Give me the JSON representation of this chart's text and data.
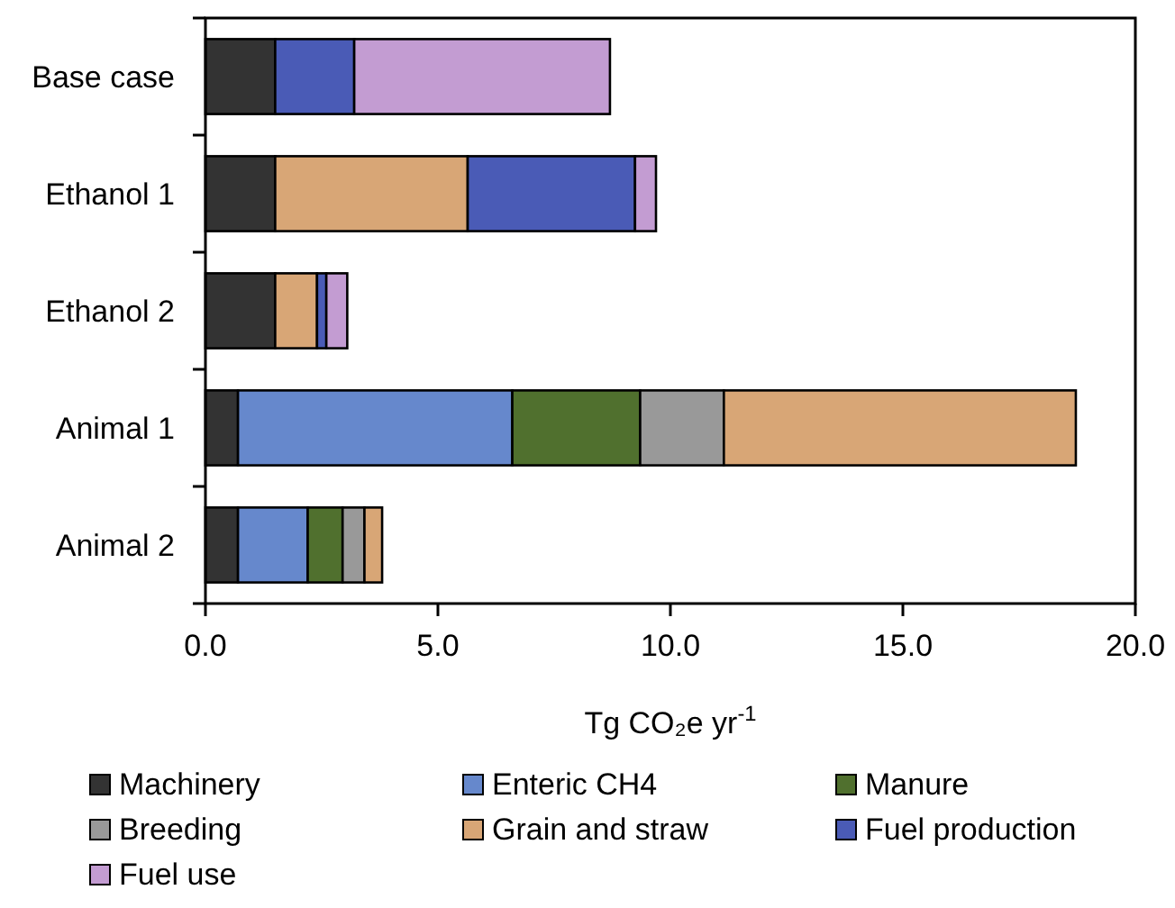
{
  "chart_data": {
    "type": "bar",
    "orientation": "horizontal",
    "stacked": true,
    "categories": [
      "Base case",
      "Ethanol 1",
      "Ethanol 2",
      "Animal 1",
      "Animal 2"
    ],
    "xlabel": "Tg CO₂e yr$^{-1}$",
    "xlim": [
      0,
      20
    ],
    "xticks": [
      {
        "value": 0,
        "label": "0.0"
      },
      {
        "value": 5,
        "label": "5.0"
      },
      {
        "value": 10,
        "label": "10.0"
      },
      {
        "value": 15,
        "label": "15.0"
      },
      {
        "value": 20,
        "label": "20.0"
      }
    ],
    "grid": false,
    "legend": "bottom",
    "series": [
      {
        "name": "Machinery",
        "color": "#333333",
        "values": [
          1.5,
          1.5,
          1.5,
          0.7,
          0.7
        ]
      },
      {
        "name": "Enteric CH4",
        "color": "#6688cc",
        "values": [
          0,
          0,
          0,
          5.9,
          1.5
        ]
      },
      {
        "name": "Manure",
        "color": "#50702e",
        "values": [
          0,
          0,
          0,
          2.75,
          0.75
        ]
      },
      {
        "name": "Breeding",
        "color": "#999999",
        "values": [
          0,
          0,
          0,
          1.8,
          0.47
        ]
      },
      {
        "name": "Grain and straw",
        "color": "#d8a676",
        "values": [
          0,
          4.14,
          0.9,
          7.57,
          0.38
        ]
      },
      {
        "name": "Fuel production",
        "color": "#4a5bb6",
        "values": [
          1.7,
          3.6,
          0.2,
          0,
          0
        ]
      },
      {
        "name": "Fuel use",
        "color": "#c39cd2",
        "values": [
          5.5,
          0.45,
          0.45,
          0,
          0
        ]
      }
    ]
  }
}
